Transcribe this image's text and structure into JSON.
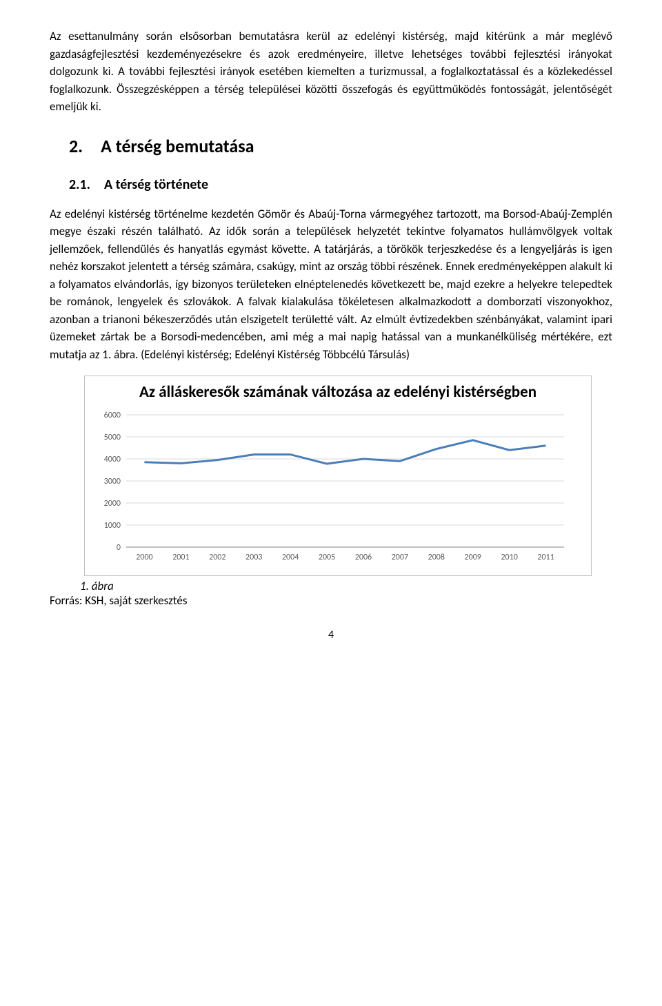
{
  "paragraphs": {
    "p1": "Az esettanulmány során elsősorban bemutatásra kerül az edelényi kistérség, majd kitérünk a már meglévő gazdaságfejlesztési kezdeményezésekre és azok eredményeire, illetve lehetséges további fejlesztési irányokat dolgozunk ki. A további fejlesztési irányok esetében kiemelten a turizmussal, a foglalkoztatással és a közlekedéssel foglalkozunk. Összegzésképpen a térség települései közötti összefogás és együttműködés fontosságát, jelentőségét emeljük ki.",
    "p2": "Az edelényi kistérség történelme kezdetén Gömör és Abaúj-Torna vármegyéhez tartozott, ma Borsod-Abaúj-Zemplén megye északi részén található. Az idők során a települések helyzetét tekintve folyamatos hullámvölgyek voltak jellemzőek, fellendülés és hanyatlás egymást követte. A tatárjárás, a törökök terjeszkedése és a lengyeljárás is igen nehéz korszakot jelentett a térség számára, csakúgy, mint az ország többi részének. Ennek eredményeképpen alakult ki a folyamatos elvándorlás, így bizonyos területeken elnéptelenedés következett be, majd ezekre a helyekre telepedtek be románok, lengyelek és szlovákok. A falvak kialakulása tökéletesen alkalmazkodott a domborzati viszonyokhoz, azonban a trianoni békeszerződés után elszigetelt területté vált. Az elmúlt évtizedekben szénbányákat, valamint ipari üzemeket zártak be a Borsodi-medencében, ami még a mai napig hatással van a munkanélküliség mértékére, ezt mutatja az 1. ábra. (Edelényi kistérség; Edelényi Kistérség Többcélú Társulás)"
  },
  "headings": {
    "h1": "2. A térség bemutatása",
    "h2": "2.1. A térség története"
  },
  "chart": {
    "type": "line",
    "title": "Az álláskeresők számának változása az edelényi kistérségben",
    "categories": [
      "2000",
      "2001",
      "2002",
      "2003",
      "2004",
      "2005",
      "2006",
      "2007",
      "2008",
      "2009",
      "2010",
      "2011"
    ],
    "values": [
      3850,
      3800,
      3950,
      4200,
      4200,
      3780,
      4000,
      3900,
      4450,
      4850,
      4400,
      4600
    ],
    "ylim": [
      0,
      6000
    ],
    "ytick_step": 1000,
    "line_color": "#4a7ebb",
    "line_width": 3,
    "grid_color": "#d9d9d9",
    "axis_color": "#808080",
    "tick_label_color": "#595959",
    "tick_fontsize": 12,
    "title_fontsize": 23,
    "title_color": "#000000",
    "background_color": "#ffffff",
    "border_color": "#c0c0c0"
  },
  "fig_label": "1.   ábra",
  "source": "Forrás: KSH, saját szerkesztés",
  "page_number": "4"
}
